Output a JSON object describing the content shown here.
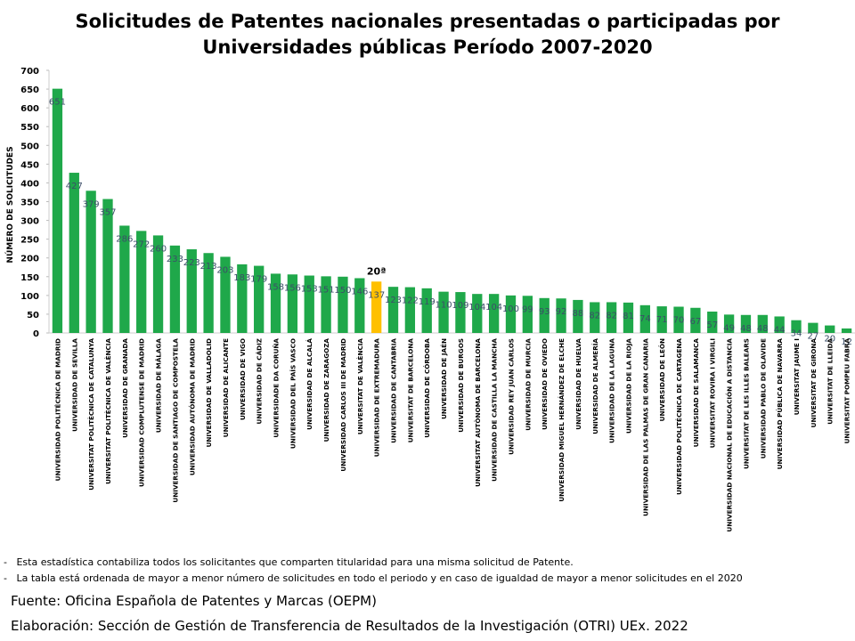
{
  "chart_data": {
    "type": "bar",
    "title": "Solicitudes de Patentes nacionales presentadas o participadas por Universidades públicas Período 2007-2020",
    "y_label": "NÚMERO DE SOLICITUDES",
    "categories": [
      "UNIVERSIDAD POLITÉCNICA DE MADRID",
      "UNIVERSIDAD DE SEVILLA",
      "UNIVERSITAT POLITÈCNICA DE CATALUNYA",
      "UNIVERSITAT POLITÈCNICA DE VALÈNCIA",
      "UNIVERSIDAD DE GRANADA",
      "UNIVERSIDAD COMPLUTENSE DE MADRID",
      "UNIVERSIDAD DE MÁLAGA",
      "UNIVERSIDAD DE SANTIAGO DE COMPOSTELA",
      "UNIVERSIDAD AUTÓNOMA DE MADRID",
      "UNIVERSIDAD DE VALLADOLID",
      "UNIVERSIDAD DE ALICANTE",
      "UNIVERSIDAD DE VIGO",
      "UNIVERSIDAD DE CÁDIZ",
      "UNIVERSIDADE DA CORUÑA",
      "UNIVERSIDAD DEL PAÍS VASCO",
      "UNIVERSIDAD DE ALCALÁ",
      "UNIVERSIDAD DE ZARAGOZA",
      "UNIVERSIDAD CARLOS III DE MADRID",
      "UNIVERSITAT DE VALÈNCIA",
      "UNIVERSIDAD DE EXTREMADURA",
      "UNIVERSIDAD DE CANTABRIA",
      "UNIVERSITAT DE BARCELONA",
      "UNIVERSIDAD DE CÓRDOBA",
      "UNIVERSIDAD DE JAÉN",
      "UNIVERSIDAD DE BURGOS",
      "UNIVERSITAT AUTÒNOMA DE BARCELONA",
      "UNIVERSIDAD DE CASTILLA LA MANCHA",
      "UNIVERSIDAD REY JUAN CARLOS",
      "UNIVERSIDAD DE MURCIA",
      "UNIVERSIDAD DE OVIEDO",
      "UNIVERSIDAD MIGUEL HERNÁNDEZ DE ELCHE",
      "UNIVERSIDAD DE HUELVA",
      "UNIVERSIDAD DE ALMERÍA",
      "UNIVERSIDAD DE LA LAGUNA",
      "UNIVERSIDAD DE LA RIOJA",
      "UNIVERSIDAD DE LAS PALMAS DE GRAN CANARIA",
      "UNIVERSIDAD DE LEÓN",
      "UNIVERSIDAD POLITÉCNICA DE CARTAGENA",
      "UNIVERSIDAD DE SALAMANCA",
      "UNIVERSITAT ROVIRA I VIRGILI",
      "UNIVERSIDAD NACIONAL DE EDUCACIÓN A DISTANCIA",
      "UNIVERSITAT DE LES ILLES BALEARS",
      "UNIVERSIDAD PABLO DE OLAVIDE",
      "UNIVERSIDAD PÚBLICA DE NAVARRA",
      "UNIVERSITAT JAUME I",
      "UNIVERSITAT DE GIRONA",
      "UNIVERSITAT DE LLEIDA",
      "UNIVERSITAT POMPEU FABRA"
    ],
    "values": [
      651,
      427,
      379,
      357,
      286,
      272,
      260,
      233,
      223,
      213,
      203,
      183,
      179,
      158,
      156,
      153,
      151,
      150,
      146,
      137,
      123,
      122,
      119,
      110,
      109,
      104,
      104,
      100,
      99,
      93,
      92,
      88,
      82,
      82,
      81,
      74,
      71,
      70,
      67,
      57,
      49,
      48,
      48,
      44,
      34,
      27,
      20,
      12
    ],
    "color": "#1fa84a",
    "highlight": {
      "category": "UNIVERSIDAD DE EXTREMADURA",
      "color": "#ffc000",
      "text": "20ª"
    },
    "ylim": [
      0,
      700
    ],
    "yticks": [
      0,
      50,
      100,
      150,
      200,
      250,
      300,
      350,
      400,
      450,
      500,
      550,
      600,
      650,
      700
    ],
    "notes": [
      "Esta estadística contabiliza todos los solicitantes que comparten titularidad para una misma solicitud de Patente.",
      "La tabla está ordenada de mayor a menor número de solicitudes en todo el periodo y en caso de igualdad de mayor a menor solicitudes en el 2020"
    ],
    "source": "Fuente: Oficina Española de Patentes y Marcas (OEPM)",
    "credit": "Elaboración: Sección de Gestión de Transferencia de Resultados de la Investigación (OTRI) UEx. 2022"
  }
}
